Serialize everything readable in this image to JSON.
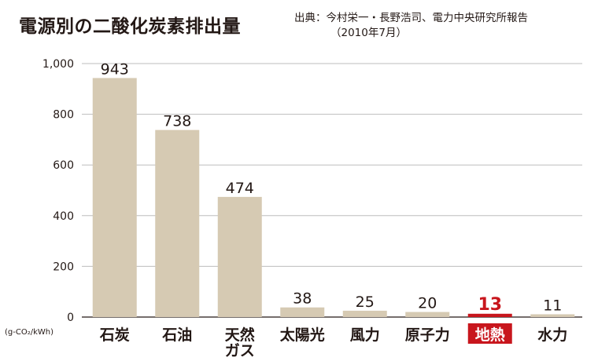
{
  "title": "電源別の二酸化炭素排出量",
  "source": {
    "line1": "出典：今村栄一・長野浩司、電力中央研究所報告",
    "line2": "（2010年7月）"
  },
  "unit_label": "(g-CO₂/kWh)",
  "colors": {
    "bar": "#d6cab3",
    "highlight": "#c8161d",
    "grid": "#bdbdbd",
    "text": "#231815"
  },
  "chart_data": {
    "type": "bar",
    "categories": [
      "石炭",
      "石油",
      "天然ガス",
      "太陽光",
      "風力",
      "原子力",
      "地熱",
      "水力"
    ],
    "values": [
      943,
      738,
      474,
      38,
      25,
      20,
      13,
      11
    ],
    "highlight_index": 6,
    "ylim": [
      0,
      1000
    ],
    "yticks": [
      0,
      200,
      400,
      600,
      800,
      1000
    ],
    "ytick_labels": [
      "0",
      "200",
      "400",
      "600",
      "800",
      "1,000"
    ],
    "grid": true,
    "category_label_lines": [
      [
        "石炭"
      ],
      [
        "石油"
      ],
      [
        "天然",
        "ガス"
      ],
      [
        "太陽光"
      ],
      [
        "風力"
      ],
      [
        "原子力"
      ],
      [
        "地熱"
      ],
      [
        "水力"
      ]
    ]
  }
}
